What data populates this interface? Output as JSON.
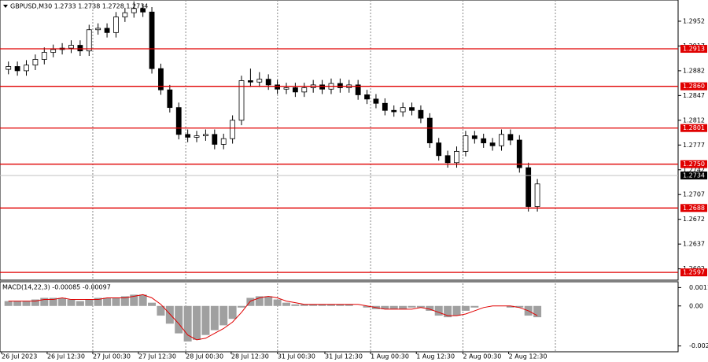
{
  "chart_data": {
    "type": "candlestick",
    "title": "GBPUSD,M30  1.2733 1.2738 1.2728 1.2734",
    "open": [
      1.2884,
      1.2888,
      1.2882,
      1.289,
      1.2898,
      1.2908,
      1.2912,
      1.2914,
      1.2918,
      1.291,
      1.294,
      1.2942,
      1.2936,
      1.2958,
      1.2964,
      1.297,
      1.2965,
      1.2885,
      1.2855,
      1.283,
      1.2792,
      1.2788,
      1.279,
      1.2792,
      1.2778,
      1.2786,
      1.2812,
      1.2868,
      1.2866,
      1.287,
      1.2862,
      1.2856,
      1.2858,
      1.2852,
      1.2858,
      1.2862,
      1.2856,
      1.2864,
      1.2858,
      1.2862,
      1.2848,
      1.2842,
      1.2836,
      1.2826,
      1.2824,
      1.283,
      1.2826,
      1.2815,
      1.278,
      1.2762,
      1.2752,
      1.2768,
      1.279,
      1.2786,
      1.278,
      1.2776,
      1.2792,
      1.2784,
      1.2745,
      1.269
    ],
    "high": [
      1.2895,
      1.2895,
      1.2897,
      1.2905,
      1.2915,
      1.2919,
      1.2921,
      1.2925,
      1.2925,
      1.2947,
      1.2949,
      1.2949,
      1.2965,
      1.2971,
      1.298,
      1.2977,
      1.2972,
      1.2892,
      1.2862,
      1.2837,
      1.2799,
      1.2797,
      1.2799,
      1.2799,
      1.2793,
      1.2819,
      1.2875,
      1.2885,
      1.288,
      1.2877,
      1.2869,
      1.2865,
      1.2865,
      1.2865,
      1.2869,
      1.2869,
      1.2871,
      1.2871,
      1.2869,
      1.2869,
      1.2855,
      1.2849,
      1.2843,
      1.2833,
      1.2837,
      1.2837,
      1.2833,
      1.2822,
      1.2787,
      1.2769,
      1.2775,
      1.2797,
      1.2797,
      1.2793,
      1.2787,
      1.2799,
      1.2799,
      1.2791,
      1.2752,
      1.2729
    ],
    "low": [
      1.2877,
      1.2875,
      1.2875,
      1.2883,
      1.2891,
      1.2901,
      1.2905,
      1.2907,
      1.2903,
      1.2903,
      1.2933,
      1.2929,
      1.2929,
      1.2951,
      1.2957,
      1.2958,
      1.2878,
      1.2848,
      1.2823,
      1.2785,
      1.2781,
      1.2781,
      1.2783,
      1.2771,
      1.2771,
      1.2779,
      1.2805,
      1.2859,
      1.2859,
      1.2855,
      1.2849,
      1.2849,
      1.2845,
      1.2845,
      1.2851,
      1.2849,
      1.2849,
      1.2851,
      1.2851,
      1.2841,
      1.2835,
      1.2829,
      1.2819,
      1.2817,
      1.2817,
      1.2819,
      1.2808,
      1.2773,
      1.2755,
      1.2745,
      1.2745,
      1.2761,
      1.2779,
      1.2773,
      1.2769,
      1.2769,
      1.2777,
      1.2738,
      1.2683,
      1.2683
    ],
    "close": [
      1.2888,
      1.2882,
      1.289,
      1.2898,
      1.2908,
      1.2912,
      1.2914,
      1.2918,
      1.291,
      1.294,
      1.2942,
      1.2936,
      1.2958,
      1.2964,
      1.297,
      1.2965,
      1.2885,
      1.2855,
      1.283,
      1.2792,
      1.2788,
      1.279,
      1.2792,
      1.2778,
      1.2786,
      1.2812,
      1.2868,
      1.2866,
      1.287,
      1.2862,
      1.2856,
      1.2858,
      1.2852,
      1.2858,
      1.2862,
      1.2856,
      1.2864,
      1.2858,
      1.2862,
      1.2848,
      1.2842,
      1.2836,
      1.2826,
      1.2824,
      1.283,
      1.2826,
      1.2815,
      1.278,
      1.2762,
      1.2752,
      1.2768,
      1.279,
      1.2786,
      1.278,
      1.2776,
      1.2792,
      1.2784,
      1.2745,
      1.269,
      1.2722
    ],
    "ylim": [
      1.2586,
      1.2982
    ],
    "yticks": [
      1.2952,
      1.2917,
      1.2882,
      1.2847,
      1.2812,
      1.2777,
      1.2742,
      1.2707,
      1.2672,
      1.2637,
      1.2602
    ],
    "levels": [
      1.2913,
      {
        "value": 1.286,
        "label": "1.2860"
      },
      1.2801,
      {
        "value": 1.275,
        "label": "1.2750"
      },
      1.2688,
      1.2597
    ],
    "level_color": "#e00000",
    "current_price": 1.2734,
    "xlim": [
      -0.94,
      74.7
    ],
    "xticks": [
      {
        "value": -0.76,
        "label": "26 Jul 2023"
      },
      {
        "value": 4.32,
        "label": "26 Jul 12:30"
      },
      {
        "value": 9.41,
        "label": "27 Jul 00:30"
      },
      {
        "value": 14.5,
        "label": "27 Jul 12:30"
      },
      {
        "value": 19.78,
        "label": "28 Jul 00:30"
      },
      {
        "value": 24.85,
        "label": "28 Jul 12:30"
      },
      {
        "value": 30.02,
        "label": "31 Jul 00:30"
      },
      {
        "value": 35.3,
        "label": "31 Jul 12:30"
      },
      {
        "value": 40.4,
        "label": "1 Aug 00:30"
      },
      {
        "value": 45.5,
        "label": "1 Aug 12:30"
      },
      {
        "value": 50.7,
        "label": "2 Aug 00:30"
      },
      {
        "value": 55.8,
        "label": "2 Aug 12:30"
      }
    ],
    "macd": {
      "title": "MACD(14,22,3) -0.00085 -0.00097",
      "ylim": [
        -0.00284,
        0.0015
      ],
      "yticks": [
        0.00114,
        {
          "value": 0,
          "label": "0.00"
        },
        -0.00248
      ],
      "histogram_color": "#a0a0a0",
      "signal_color": "#e00000",
      "histogram": [
        0.0003,
        0.0003,
        0.0003,
        0.0004,
        0.0005,
        0.0005,
        0.0005,
        0.0004,
        0.0003,
        0.0004,
        0.0005,
        0.0005,
        0.0005,
        0.0006,
        0.0007,
        0.0007,
        0.0002,
        -0.0006,
        -0.0011,
        -0.0017,
        -0.0022,
        -0.0021,
        -0.0018,
        -0.0015,
        -0.0012,
        -0.0008,
        -0.0001,
        0.0005,
        0.0006,
        0.0006,
        0.0004,
        0.0002,
        0.0001,
        0.0001,
        0.0001,
        0.0001,
        0.0001,
        0.0001,
        0.0001,
        0,
        -0.0001,
        -0.0002,
        -0.0002,
        -0.0002,
        -0.0002,
        -0.0001,
        -0.0001,
        -0.0003,
        -0.0006,
        -0.0007,
        -0.0006,
        -0.0003,
        -0.0001,
        0,
        0,
        0,
        -0.0001,
        -0.0001,
        -0.0006,
        -0.0007
      ],
      "signal": [
        0.0003,
        0.0003,
        0.0003,
        0.0003,
        0.0004,
        0.0004,
        0.0005,
        0.0004,
        0.0004,
        0.0004,
        0.0004,
        0.0005,
        0.0005,
        0.0005,
        0.0006,
        0.0007,
        0.0005,
        0.0001,
        -0.0005,
        -0.0011,
        -0.0018,
        -0.0021,
        -0.002,
        -0.0017,
        -0.0014,
        -0.001,
        -0.0004,
        0.0003,
        0.0005,
        0.0006,
        0.0005,
        0.0003,
        0.0002,
        0.0001,
        0.0001,
        0.0001,
        0.0001,
        0.0001,
        0.0001,
        0.0001,
        0,
        -0.0001,
        -0.0002,
        -0.0002,
        -0.0002,
        -0.0002,
        -0.0001,
        -0.0002,
        -0.0004,
        -0.0006,
        -0.0006,
        -0.0005,
        -0.0003,
        -0.0001,
        0,
        0,
        0,
        -0.0001,
        -0.0003,
        -0.0006
      ]
    }
  }
}
